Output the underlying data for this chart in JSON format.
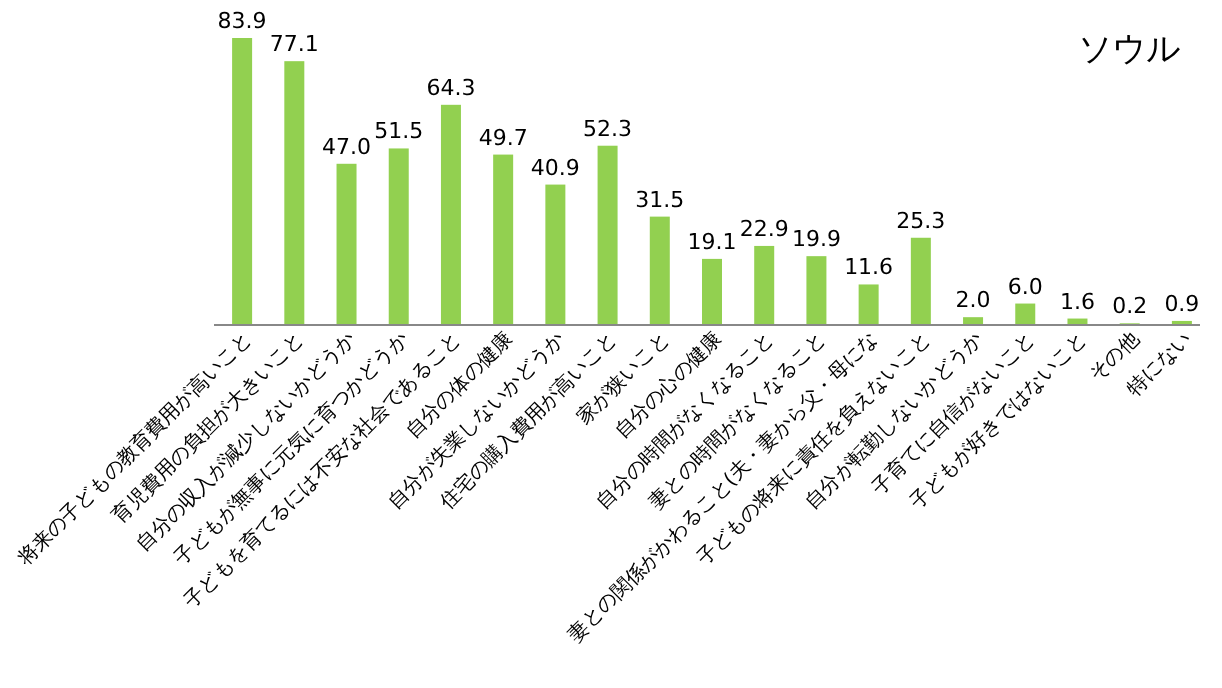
{
  "chart_data": {
    "type": "bar",
    "title": "ソウル",
    "data_labels": true,
    "color": "#92d050",
    "categories": [
      "将来の子どもの教育費用が高いこと",
      "育児費用の負担が大きいこと",
      "自分の収入が減少しないかどうか",
      "子どもが無事に元気に育つかどうか",
      "子どもを育てるには不安な社会であること",
      "自分の体の健康",
      "自分が失業しないかどうか",
      "住宅の購入費用が高いこと",
      "家が狭いこと",
      "自分の心の健康",
      "自分の時間がなくなること",
      "妻との時間がなくなること",
      "妻との関係がかわること(夫・妻から父・母にな",
      "子どもの将来に責任を負えないこと",
      "自分が転勤しないかどうか",
      "子育てに自信がないこと",
      "子どもが好きではないこと",
      "その他",
      "特にない"
    ],
    "values": [
      83.9,
      77.1,
      47.0,
      51.5,
      64.3,
      49.7,
      40.9,
      52.3,
      31.5,
      19.1,
      22.9,
      19.9,
      11.6,
      25.3,
      2.0,
      6.0,
      1.6,
      0.2,
      0.9
    ],
    "value_labels": [
      "83.9",
      "77.1",
      "47.0",
      "51.5",
      "64.3",
      "49.7",
      "40.9",
      "52.3",
      "31.5",
      "19.1",
      "22.9",
      "19.9",
      "11.6",
      "25.3",
      "2.0",
      "6.0",
      "1.6",
      "0.2",
      "0.9"
    ]
  }
}
